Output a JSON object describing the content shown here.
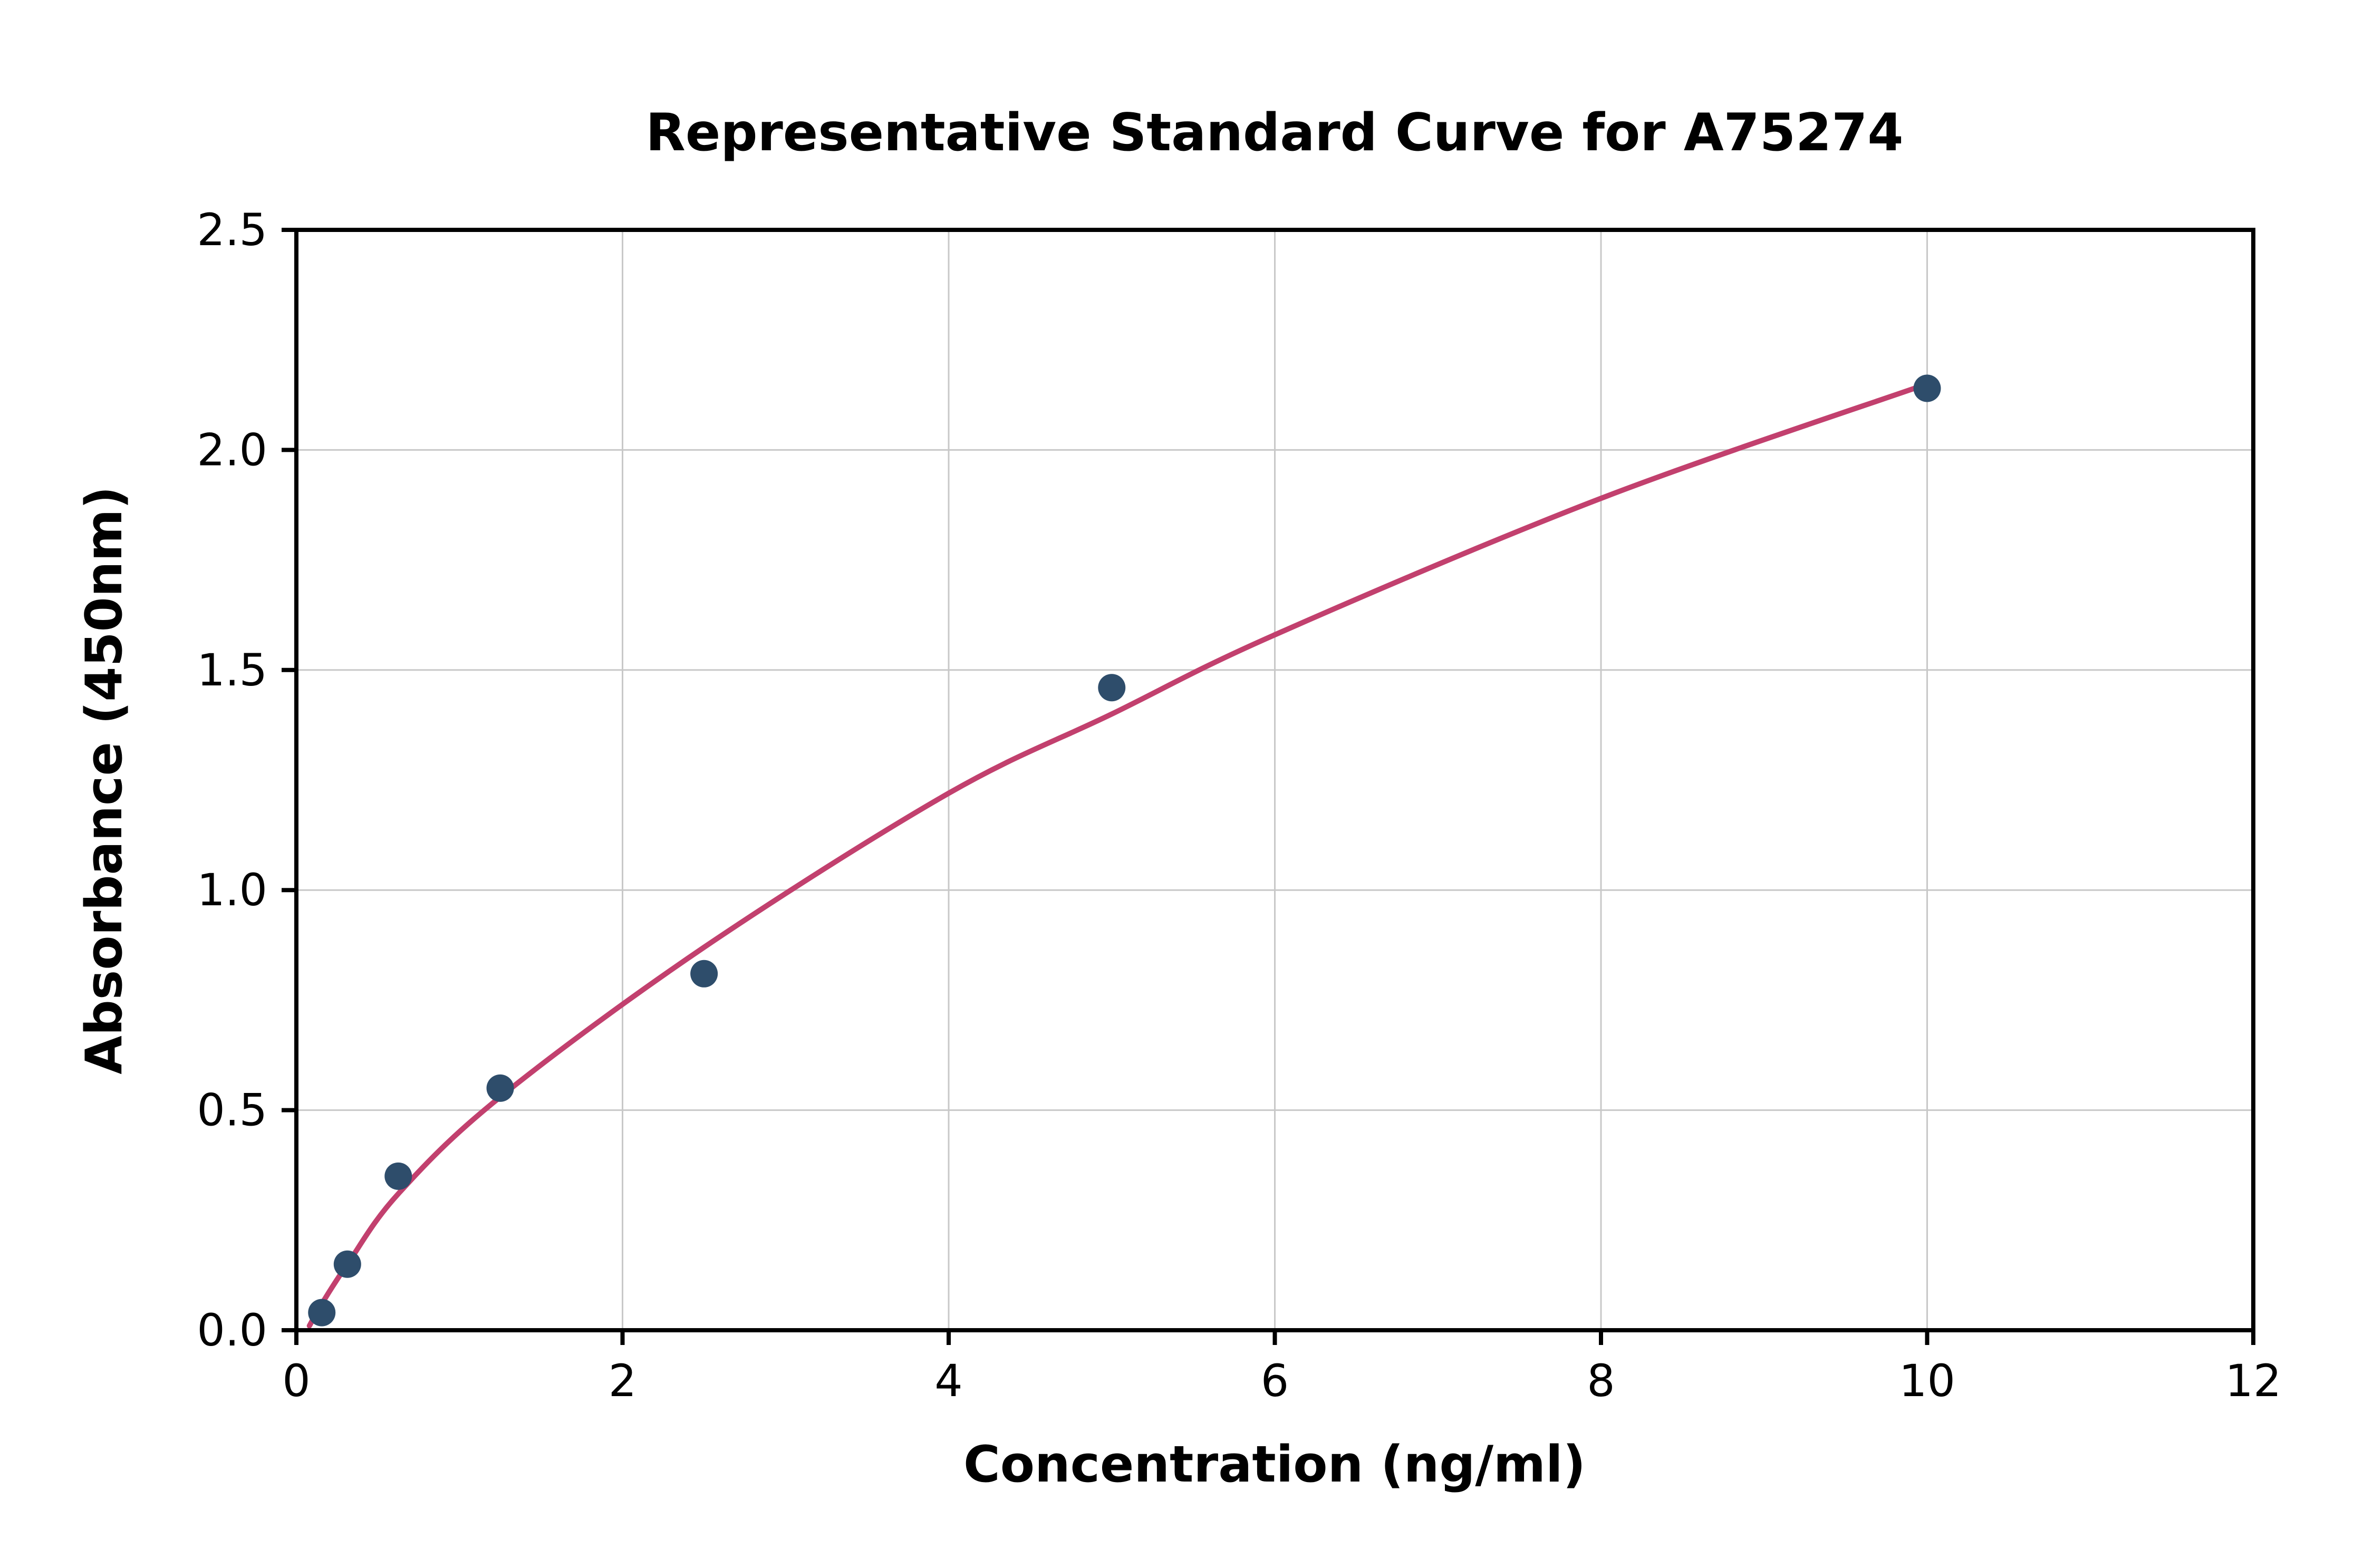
{
  "chart_data": {
    "type": "scatter",
    "title": "Representative Standard Curve for A75274",
    "xlabel": "Concentration (ng/ml)",
    "ylabel": "Absorbance (450nm)",
    "xlim": [
      0,
      12
    ],
    "ylim": [
      0,
      2.5
    ],
    "xticks": [
      0,
      2,
      4,
      6,
      8,
      10,
      12
    ],
    "xtick_labels": [
      "0",
      "2",
      "4",
      "6",
      "8",
      "10",
      "12"
    ],
    "yticks": [
      0.0,
      0.5,
      1.0,
      1.5,
      2.0,
      2.5
    ],
    "ytick_labels": [
      "0.0",
      "0.5",
      "1.0",
      "1.5",
      "2.0",
      "2.5"
    ],
    "grid": true,
    "legend": "none",
    "points": [
      {
        "x": 0.156,
        "y": 0.04
      },
      {
        "x": 0.313,
        "y": 0.15
      },
      {
        "x": 0.625,
        "y": 0.35
      },
      {
        "x": 1.25,
        "y": 0.55
      },
      {
        "x": 2.5,
        "y": 0.81
      },
      {
        "x": 5.0,
        "y": 1.46
      },
      {
        "x": 10.0,
        "y": 2.14
      }
    ],
    "fit_curve": [
      [
        0.08,
        0.01
      ],
      [
        0.156,
        0.06
      ],
      [
        0.313,
        0.15
      ],
      [
        0.625,
        0.31
      ],
      [
        1.25,
        0.53
      ],
      [
        2.5,
        0.87
      ],
      [
        4.0,
        1.22
      ],
      [
        5.0,
        1.4
      ],
      [
        6.0,
        1.58
      ],
      [
        8.0,
        1.89
      ],
      [
        10.0,
        2.15
      ]
    ],
    "colors": {
      "point": "#2e4d6b",
      "curve": "#c2406e",
      "grid": "#c8c8c8",
      "axis": "#000000",
      "background": "#ffffff"
    }
  }
}
